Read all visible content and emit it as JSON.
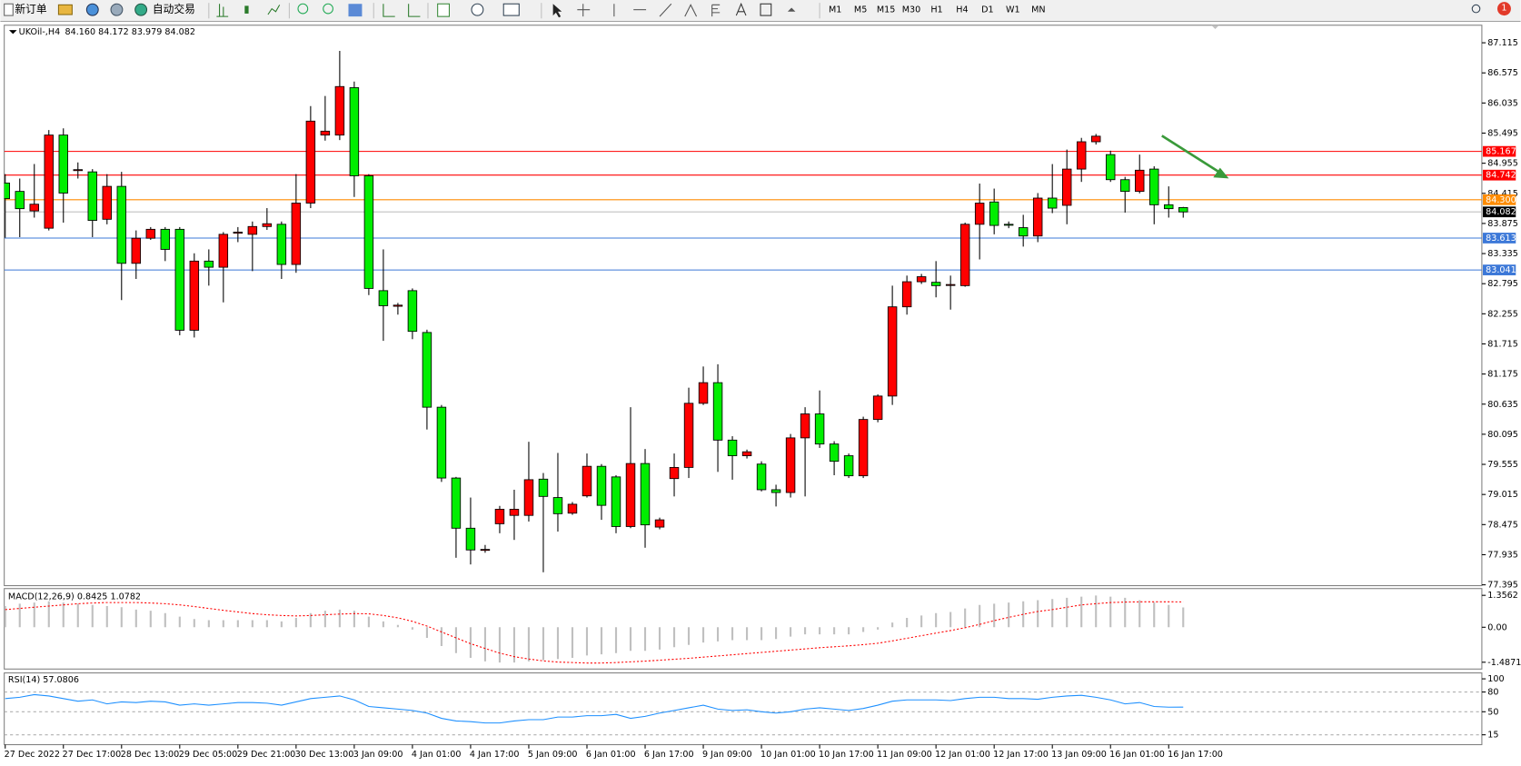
{
  "toolbar": {
    "new_order": "新订单",
    "auto_trading": "自动交易",
    "timeframes": [
      "M1",
      "M5",
      "M15",
      "M30",
      "H1",
      "H4",
      "D1",
      "W1",
      "MN"
    ],
    "notification_count": 1
  },
  "chart_data": [
    {
      "type": "candlestick",
      "title": "UKOil-,H4",
      "subtitle": "84.160 84.172 83.979 84.082",
      "categories": [
        "27 Dec 2022",
        null,
        null,
        null,
        "27 Dec 17:00",
        null,
        null,
        null,
        "28 Dec 13:00",
        null,
        null,
        null,
        "29 Dec 05:00",
        null,
        null,
        null,
        "29 Dec 21:00",
        null,
        null,
        null,
        "30 Dec 13:00",
        null,
        null,
        null,
        "3 Jan 09:00",
        null,
        null,
        null,
        "4 Jan 01:00",
        null,
        null,
        null,
        "4 Jan 17:00",
        null,
        null,
        null,
        "5 Jan 09:00",
        null,
        null,
        null,
        "6 Jan 01:00",
        null,
        null,
        null,
        "6 Jan 17:00",
        null,
        null,
        null,
        "9 Jan 09:00",
        null,
        null,
        null,
        "10 Jan 01:00",
        null,
        null,
        null,
        "10 Jan 17:00",
        null,
        null,
        null,
        "11 Jan 09:00",
        null,
        null,
        null,
        "12 Jan 01:00",
        null,
        null,
        null,
        "12 Jan 17:00",
        null,
        null,
        null,
        "13 Jan 09:00",
        null,
        null,
        null,
        "16 Jan 01:00",
        null,
        null,
        null,
        "16 Jan 17:00",
        null
      ],
      "open": [
        84.6,
        84.45,
        84.1,
        83.79,
        85.46,
        84.83,
        84.8,
        83.95,
        84.54,
        83.16,
        83.61,
        83.77,
        83.77,
        81.96,
        83.2,
        83.09,
        83.7,
        83.68,
        83.82,
        83.86,
        83.14,
        84.24,
        85.46,
        85.46,
        86.31,
        84.73,
        82.67,
        82.39,
        82.67,
        81.92,
        80.58,
        79.31,
        78.41,
        78.02,
        78.49,
        78.64,
        78.64,
        79.29,
        78.96,
        78.68,
        78.99,
        79.52,
        79.33,
        78.44,
        79.57,
        78.43,
        79.3,
        79.5,
        80.65,
        81.02,
        79.99,
        79.71,
        79.56,
        79.1,
        79.05,
        80.03,
        80.46,
        79.92,
        79.71,
        79.35,
        80.36,
        80.78,
        82.38,
        82.83,
        82.82,
        82.78,
        82.76,
        83.86,
        84.26,
        83.86,
        83.8,
        83.65,
        84.33,
        84.2,
        84.85,
        85.34,
        85.11,
        84.66,
        84.45,
        84.85,
        84.21,
        84.16
      ],
      "high": [
        84.76,
        84.68,
        84.94,
        85.55,
        85.58,
        84.97,
        84.85,
        84.76,
        84.8,
        83.75,
        83.81,
        83.81,
        83.81,
        83.34,
        83.41,
        83.72,
        83.81,
        83.91,
        84.15,
        83.91,
        84.76,
        85.98,
        86.16,
        86.97,
        86.42,
        84.76,
        83.41,
        82.45,
        82.71,
        81.97,
        80.62,
        79.33,
        78.96,
        78.11,
        78.81,
        79.1,
        79.96,
        79.4,
        79.76,
        78.88,
        79.75,
        79.56,
        79.36,
        80.58,
        79.83,
        78.6,
        79.75,
        80.93,
        81.31,
        81.35,
        80.06,
        79.82,
        79.61,
        79.19,
        80.1,
        80.58,
        80.88,
        79.97,
        79.75,
        80.41,
        80.81,
        82.76,
        82.94,
        82.97,
        83.2,
        82.94,
        83.89,
        84.59,
        84.5,
        83.91,
        84.03,
        84.42,
        84.94,
        85.2,
        85.41,
        85.48,
        85.18,
        84.71,
        85.11,
        84.9,
        84.54,
        84.172
      ],
      "low": [
        83.62,
        83.63,
        83.98,
        83.75,
        83.89,
        84.68,
        83.63,
        83.86,
        82.5,
        82.88,
        83.58,
        83.2,
        81.87,
        81.83,
        82.76,
        82.46,
        83.54,
        83.02,
        83.76,
        82.88,
        82.99,
        84.15,
        85.36,
        85.37,
        84.35,
        82.59,
        81.77,
        82.24,
        81.8,
        80.18,
        79.24,
        77.88,
        77.76,
        77.97,
        78.32,
        78.2,
        78.53,
        77.62,
        78.35,
        78.65,
        78.96,
        78.56,
        78.32,
        78.41,
        78.06,
        78.39,
        78.98,
        79.31,
        80.62,
        79.42,
        79.28,
        79.66,
        79.07,
        78.8,
        78.96,
        78.98,
        79.85,
        79.36,
        79.31,
        79.31,
        80.31,
        80.62,
        82.24,
        82.79,
        82.55,
        82.33,
        82.74,
        83.23,
        83.68,
        83.79,
        83.46,
        83.54,
        84.06,
        83.86,
        84.62,
        85.29,
        84.62,
        84.07,
        84.415,
        83.86,
        83.98,
        83.979
      ],
      "close": [
        84.32,
        84.14,
        84.22,
        85.46,
        84.42,
        84.84,
        83.93,
        84.54,
        83.16,
        83.61,
        83.77,
        83.41,
        81.96,
        83.2,
        83.09,
        83.68,
        83.72,
        83.82,
        83.87,
        83.14,
        84.24,
        85.71,
        85.53,
        86.33,
        84.73,
        82.71,
        82.4,
        82.41,
        81.94,
        80.58,
        79.31,
        78.41,
        78.02,
        78.03,
        78.75,
        78.75,
        79.28,
        78.98,
        78.67,
        78.84,
        79.52,
        78.82,
        78.44,
        79.57,
        78.47,
        78.56,
        79.5,
        80.65,
        81.02,
        79.99,
        79.71,
        79.78,
        79.1,
        79.05,
        80.03,
        80.46,
        79.92,
        79.61,
        79.35,
        80.36,
        80.78,
        82.38,
        82.83,
        82.92,
        82.76,
        82.78,
        83.86,
        84.24,
        83.84,
        83.85,
        83.65,
        84.33,
        84.15,
        84.85,
        85.34,
        85.44,
        84.66,
        84.45,
        84.83,
        84.21,
        84.14,
        84.082
      ],
      "up_color": "#ff0000",
      "down_color": "#00ee00",
      "ylim": [
        77.38,
        87.43
      ],
      "yticks": [
        87.115,
        86.575,
        86.035,
        85.495,
        84.955,
        84.415,
        83.875,
        83.335,
        82.795,
        82.255,
        81.715,
        81.175,
        80.635,
        80.095,
        79.555,
        79.015,
        78.475,
        77.935,
        77.395
      ],
      "hlines": [
        {
          "value": 85.167,
          "color": "#ff0000",
          "box_color": "#ff0000"
        },
        {
          "value": 84.742,
          "color": "#ff0000",
          "box_color": "#ff0000"
        },
        {
          "value": 84.3,
          "label": "84.300",
          "color": "#ff8c00",
          "box_color": "#ff8c00"
        },
        {
          "value": 84.082,
          "color": "#c0c0c0",
          "box_color": "#000000"
        },
        {
          "value": 83.613,
          "color": "#3c78d8",
          "box_color": "#3c78d8"
        },
        {
          "value": 83.041,
          "color": "#3c78d8",
          "box_color": "#3c78d8"
        }
      ]
    },
    {
      "type": "macd",
      "title": "MACD(12,26,9) 0.8425 1.0782",
      "series": [
        {
          "style": "histogram",
          "color": "#c0c0c0",
          "values": [
            0.9,
            1.0,
            1.05,
            1.1,
            1.05,
            1.0,
            0.95,
            0.9,
            0.85,
            0.75,
            0.7,
            0.6,
            0.45,
            0.35,
            0.3,
            0.3,
            0.3,
            0.3,
            0.3,
            0.25,
            0.4,
            0.6,
            0.7,
            0.75,
            0.7,
            0.45,
            0.25,
            0.1,
            -0.1,
            -0.45,
            -0.8,
            -1.1,
            -1.3,
            -1.45,
            -1.5,
            -1.5,
            -1.45,
            -1.4,
            -1.35,
            -1.3,
            -1.2,
            -1.15,
            -1.1,
            -1.0,
            -1.0,
            -0.95,
            -0.85,
            -0.75,
            -0.65,
            -0.6,
            -0.55,
            -0.55,
            -0.55,
            -0.5,
            -0.4,
            -0.3,
            -0.3,
            -0.3,
            -0.3,
            -0.2,
            -0.1,
            0.2,
            0.4,
            0.5,
            0.6,
            0.65,
            0.8,
            0.95,
            1.0,
            1.05,
            1.1,
            1.15,
            1.2,
            1.25,
            1.3,
            1.35,
            1.3,
            1.25,
            1.15,
            1.05,
            0.95,
            0.8425
          ]
        },
        {
          "style": "dotted",
          "color": "#ff0000",
          "values": [
            0.75,
            0.8,
            0.85,
            0.9,
            0.95,
            1.0,
            1.03,
            1.05,
            1.05,
            1.05,
            1.03,
            1.0,
            0.95,
            0.88,
            0.8,
            0.72,
            0.65,
            0.58,
            0.53,
            0.5,
            0.48,
            0.5,
            0.53,
            0.56,
            0.58,
            0.57,
            0.5,
            0.4,
            0.25,
            0.05,
            -0.2,
            -0.45,
            -0.7,
            -0.9,
            -1.1,
            -1.25,
            -1.35,
            -1.43,
            -1.48,
            -1.5,
            -1.52,
            -1.52,
            -1.5,
            -1.47,
            -1.44,
            -1.4,
            -1.36,
            -1.32,
            -1.27,
            -1.22,
            -1.17,
            -1.12,
            -1.07,
            -1.02,
            -0.97,
            -0.92,
            -0.87,
            -0.83,
            -0.79,
            -0.74,
            -0.68,
            -0.58,
            -0.47,
            -0.36,
            -0.25,
            -0.14,
            -0.02,
            0.12,
            0.28,
            0.42,
            0.55,
            0.67,
            0.75,
            0.85,
            0.95,
            1.0,
            1.05,
            1.07,
            1.08,
            1.08,
            1.08,
            1.0782
          ]
        }
      ],
      "ylim": [
        -1.776,
        1.644
      ],
      "yticks": [
        1.3562,
        {
          "value": 0,
          "label": "0.00"
        },
        -1.4871
      ]
    },
    {
      "type": "rsi",
      "title": "RSI(14) 57.0806",
      "series": [
        {
          "style": "line",
          "color": "#1e90ff",
          "values": [
            70,
            72,
            76,
            74,
            70,
            66,
            68,
            62,
            65,
            64,
            66,
            65,
            60,
            62,
            60,
            62,
            64,
            64,
            63,
            60,
            65,
            70,
            72,
            74,
            68,
            58,
            56,
            54,
            52,
            48,
            40,
            36,
            35,
            33,
            33,
            36,
            38,
            38,
            42,
            42,
            44,
            44,
            46,
            40,
            43,
            48,
            52,
            56,
            60,
            54,
            52,
            53,
            50,
            48,
            50,
            54,
            56,
            54,
            52,
            55,
            60,
            66,
            68,
            68,
            68,
            67,
            70,
            72,
            72,
            70,
            70,
            69,
            72,
            74,
            75,
            72,
            68,
            62,
            64,
            58,
            57,
            57.0806
          ]
        }
      ],
      "ylim": [
        0,
        109
      ],
      "yticks": [
        100,
        80,
        50,
        15
      ],
      "levels_dashed": true
    }
  ]
}
